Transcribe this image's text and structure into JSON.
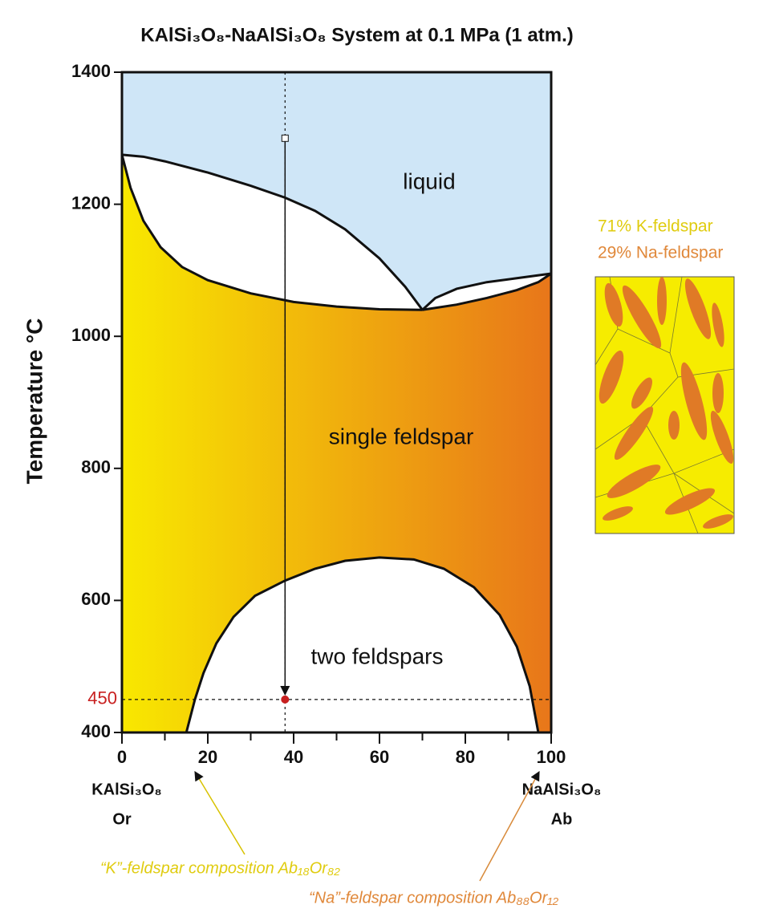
{
  "chart_data": {
    "type": "phase-diagram",
    "title": "KAlSi₃O₈-NaAlSi₃O₈ System at 0.1 MPa (1 atm.)",
    "ylabel": "Temperature °C",
    "xlim": [
      0,
      100
    ],
    "ylim": [
      400,
      1400
    ],
    "xticks": [
      0,
      20,
      40,
      60,
      80,
      100
    ],
    "yticks": [
      400,
      600,
      800,
      1000,
      1200,
      1400
    ],
    "endmembers": [
      {
        "formula": "KAlSi₃O₈",
        "abbr": "Or"
      },
      {
        "formula": "NaAlSi₃O₈",
        "abbr": "Ab"
      }
    ],
    "region_labels": [
      "liquid",
      "single feldspar",
      "two feldspars"
    ],
    "curves": [
      {
        "x": [
          0,
          5,
          10,
          20,
          30,
          38,
          45,
          52,
          60,
          66,
          70
        ],
        "y": [
          1275,
          1272,
          1265,
          1248,
          1228,
          1210,
          1190,
          1162,
          1118,
          1075,
          1040
        ]
      },
      {
        "x": [
          70,
          73,
          78,
          85,
          92,
          100
        ],
        "y": [
          1040,
          1058,
          1072,
          1082,
          1088,
          1095
        ]
      },
      {
        "x": [
          0,
          2,
          5,
          9,
          14,
          20,
          30,
          40,
          50,
          60,
          70
        ],
        "y": [
          1275,
          1225,
          1175,
          1135,
          1105,
          1085,
          1065,
          1052,
          1045,
          1041,
          1040
        ]
      },
      {
        "x": [
          70,
          78,
          85,
          92,
          97,
          100
        ],
        "y": [
          1040,
          1048,
          1058,
          1070,
          1082,
          1095
        ]
      },
      {
        "x": [
          15,
          17,
          19,
          22,
          26,
          31,
          38,
          45,
          52,
          60,
          68,
          75,
          82,
          88,
          92,
          95,
          97
        ],
        "y": [
          400,
          450,
          490,
          535,
          575,
          607,
          630,
          648,
          660,
          665,
          662,
          648,
          620,
          578,
          530,
          470,
          400
        ]
      }
    ],
    "path": {
      "x": 38,
      "start": 1300,
      "end": 450
    },
    "isotherm": 450,
    "texture_labels": [
      "71% K-feldspar",
      "29% Na-feldspar"
    ],
    "annotations": [
      "“K”-feldspar composition Ab₁₈Or₈₂",
      "“Na”-feldspar composition Ab₈₈Or₁₂"
    ],
    "colors": {
      "liquid": "#cfe6f7",
      "low": "#f8e800",
      "high": "#e8761a",
      "k": "#e0cc10",
      "na": "#e0883a",
      "isotherm": "#c82020"
    }
  }
}
